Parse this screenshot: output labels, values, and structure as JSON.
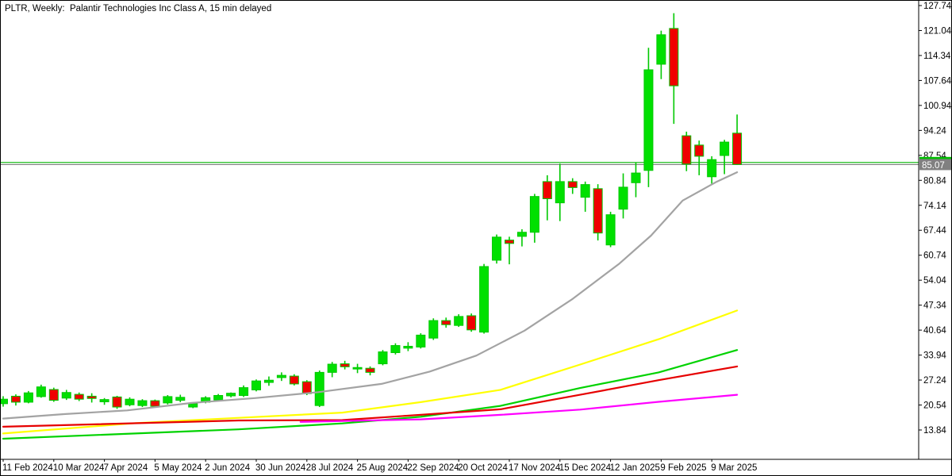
{
  "title": "PLTR, Weekly:  Palantir Technologies Inc Class A, 15 min delayed",
  "chart_data": {
    "type": "candlestick",
    "symbol": "PLTR",
    "timeframe": "Weekly",
    "description": "Palantir Technologies Inc Class A",
    "data_note": "15 min delayed",
    "grid": false,
    "legend_position": "none",
    "colors": {
      "background": "#ffffff",
      "bull_body": "#00e000",
      "bear_body": "#f00000",
      "candle_border": "#00c800",
      "axis": "#000000",
      "ma_gray": "#a3a3a3",
      "ma_yellow": "#ffff00",
      "ma_green": "#00d200",
      "ma_red": "#e60000",
      "ma_magenta": "#ff00ff",
      "bid_line": "#00b400",
      "last_line": "#808080",
      "bid_label_bg": "#00be00",
      "last_label_bg": "#808080",
      "label_text": "#ffffff"
    },
    "price_axis": {
      "side": "right",
      "ticks": [
        127.74,
        121.04,
        114.34,
        107.64,
        100.94,
        94.24,
        87.54,
        80.84,
        74.14,
        67.44,
        60.74,
        54.04,
        47.34,
        40.64,
        33.94,
        27.24,
        20.54,
        13.84
      ]
    },
    "time_axis": {
      "tick_weeks": [
        0,
        4,
        8,
        12,
        16,
        20,
        24,
        28,
        32,
        36,
        40,
        44,
        48,
        52,
        56
      ],
      "tick_labels": [
        "11 Feb 2024",
        "10 Mar 2024",
        "7 Apr 2024",
        "5 May 2024",
        "2 Jun 2024",
        "30 Jun 2024",
        "28 Jul 2024",
        "25 Aug 2024",
        "22 Sep 2024",
        "20 Oct 2024",
        "17 Nov 2024",
        "15 Dec 2024",
        "12 Jan 2025",
        "9 Feb 2025",
        "9 Mar 2025"
      ]
    },
    "candles_ohlc": [
      [
        20.9,
        22.9,
        20.1,
        22.1
      ],
      [
        22.9,
        23.4,
        20.4,
        21.3
      ],
      [
        21.3,
        24.3,
        21.0,
        23.8
      ],
      [
        22.8,
        26.0,
        22.5,
        25.4
      ],
      [
        24.7,
        25.2,
        21.4,
        21.8
      ],
      [
        22.4,
        24.6,
        21.9,
        23.9
      ],
      [
        23.4,
        23.9,
        21.6,
        22.1
      ],
      [
        22.9,
        23.7,
        21.2,
        22.3
      ],
      [
        21.4,
        22.4,
        20.6,
        22.0
      ],
      [
        22.7,
        23.0,
        19.5,
        20.0
      ],
      [
        20.6,
        22.6,
        20.2,
        22.1
      ],
      [
        20.4,
        22.1,
        20.0,
        21.7
      ],
      [
        21.7,
        22.0,
        19.8,
        20.2
      ],
      [
        21.1,
        23.2,
        20.7,
        22.8
      ],
      [
        21.8,
        23.3,
        21.3,
        22.6
      ],
      [
        20.0,
        21.3,
        19.7,
        20.9
      ],
      [
        21.3,
        22.9,
        21.0,
        22.5
      ],
      [
        21.9,
        23.5,
        21.5,
        23.1
      ],
      [
        23.0,
        23.9,
        22.6,
        23.7
      ],
      [
        23.1,
        25.8,
        22.7,
        25.2
      ],
      [
        24.6,
        27.4,
        24.2,
        27.0
      ],
      [
        26.6,
        28.2,
        25.7,
        27.2
      ],
      [
        27.9,
        29.3,
        27.0,
        28.5
      ],
      [
        28.3,
        28.8,
        25.8,
        26.2
      ],
      [
        26.8,
        27.2,
        23.2,
        23.6
      ],
      [
        20.4,
        29.8,
        20.0,
        29.3
      ],
      [
        29.3,
        32.1,
        28.0,
        31.5
      ],
      [
        31.6,
        32.4,
        30.1,
        30.8
      ],
      [
        30.2,
        31.6,
        29.1,
        30.6
      ],
      [
        30.4,
        30.9,
        28.5,
        29.3
      ],
      [
        31.6,
        35.3,
        31.2,
        34.8
      ],
      [
        34.6,
        37.1,
        34.1,
        36.5
      ],
      [
        35.8,
        37.4,
        35.0,
        36.3
      ],
      [
        36.1,
        39.8,
        35.7,
        39.3
      ],
      [
        38.5,
        43.8,
        38.0,
        43.2
      ],
      [
        43.2,
        44.0,
        41.3,
        42.1
      ],
      [
        41.9,
        44.9,
        41.5,
        44.3
      ],
      [
        44.5,
        45.1,
        40.2,
        40.7
      ],
      [
        40.1,
        58.4,
        39.7,
        57.7
      ],
      [
        59.4,
        66.3,
        58.5,
        65.6
      ],
      [
        64.8,
        65.7,
        58.3,
        63.9
      ],
      [
        65.8,
        67.7,
        63.1,
        66.9
      ],
      [
        66.9,
        77.2,
        64.1,
        76.5
      ],
      [
        80.5,
        82.2,
        70.1,
        75.9
      ],
      [
        74.8,
        85.3,
        69.9,
        80.5
      ],
      [
        80.5,
        81.4,
        77.2,
        78.9
      ],
      [
        76.3,
        80.5,
        72.4,
        79.7
      ],
      [
        78.6,
        79.8,
        64.7,
        66.7
      ],
      [
        63.5,
        72.4,
        62.9,
        71.6
      ],
      [
        73.1,
        82.7,
        70.6,
        79.0
      ],
      [
        80.2,
        85.7,
        76.3,
        82.8
      ],
      [
        83.5,
        116.4,
        79.0,
        110.5
      ],
      [
        112.0,
        121.0,
        108.0,
        119.9
      ],
      [
        121.6,
        125.7,
        96.0,
        106.2
      ],
      [
        92.8,
        93.9,
        83.3,
        85.2
      ],
      [
        90.3,
        91.5,
        82.2,
        87.3
      ],
      [
        81.8,
        87.3,
        79.8,
        86.4
      ],
      [
        87.5,
        91.7,
        82.5,
        91.1
      ],
      [
        93.5,
        98.5,
        85.0,
        85.1
      ]
    ],
    "moving_averages": [
      {
        "name": "ma-gray",
        "color_key": "ma_gray",
        "width": 2.2,
        "points": [
          [
            0,
            16.9
          ],
          [
            4.8,
            18.1
          ],
          [
            9.8,
            19.1
          ],
          [
            14.9,
            21.1
          ],
          [
            19.9,
            22.4
          ],
          [
            24.9,
            24.0
          ],
          [
            29.9,
            26.2
          ],
          [
            33.7,
            29.5
          ],
          [
            37.4,
            33.8
          ],
          [
            41.2,
            40.5
          ],
          [
            45.0,
            49.0
          ],
          [
            48.7,
            58.5
          ],
          [
            51.2,
            66.0
          ],
          [
            53.7,
            75.4
          ],
          [
            56.3,
            80.3
          ],
          [
            58,
            83.0
          ]
        ]
      },
      {
        "name": "ma-yellow",
        "color_key": "ma_yellow",
        "width": 2.2,
        "points": [
          [
            0,
            12.9
          ],
          [
            10.5,
            15.7
          ],
          [
            18.6,
            17.1
          ],
          [
            26.8,
            18.5
          ],
          [
            33.0,
            21.3
          ],
          [
            39.3,
            24.6
          ],
          [
            45.6,
            31.4
          ],
          [
            51.8,
            38.2
          ],
          [
            58,
            45.9
          ]
        ]
      },
      {
        "name": "ma-green",
        "color_key": "ma_green",
        "width": 2.2,
        "points": [
          [
            0,
            11.5
          ],
          [
            18.6,
            14.0
          ],
          [
            26.8,
            15.6
          ],
          [
            33.0,
            17.4
          ],
          [
            39.3,
            20.3
          ],
          [
            45.6,
            25.1
          ],
          [
            51.8,
            29.3
          ],
          [
            58,
            35.3
          ]
        ]
      },
      {
        "name": "ma-red",
        "color_key": "ma_red",
        "width": 2.2,
        "points": [
          [
            0,
            14.7
          ],
          [
            18.6,
            16.4
          ],
          [
            26.8,
            16.5
          ],
          [
            33.0,
            17.9
          ],
          [
            39.3,
            19.4
          ],
          [
            45.6,
            23.3
          ],
          [
            51.8,
            27.2
          ],
          [
            58,
            30.9
          ]
        ]
      },
      {
        "name": "ma-magenta",
        "color_key": "ma_magenta",
        "width": 2.2,
        "points": [
          [
            23.5,
            16.0
          ],
          [
            33.0,
            16.7
          ],
          [
            39.3,
            17.9
          ],
          [
            45.6,
            19.3
          ],
          [
            51.8,
            21.4
          ],
          [
            58,
            23.3
          ]
        ]
      }
    ],
    "price_lines": [
      {
        "name": "bid-line",
        "price": 85.63,
        "label": "85.63",
        "line_color_key": "bid_line",
        "label_bg_key": "bid_label_bg"
      },
      {
        "name": "last-price-line",
        "price": 85.07,
        "label": "85.07",
        "line_color_key": "last_line",
        "label_bg_key": "last_label_bg"
      }
    ]
  }
}
